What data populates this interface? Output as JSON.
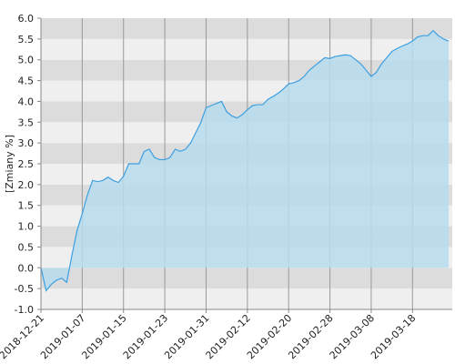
{
  "chart_data": {
    "type": "area",
    "y_label": "[Zmiany %]",
    "categories": [
      "2018-12-21",
      null,
      null,
      null,
      null,
      null,
      null,
      null,
      "2019-01-07",
      null,
      null,
      null,
      null,
      null,
      null,
      null,
      "2019-01-15",
      null,
      null,
      null,
      null,
      null,
      null,
      null,
      "2019-01-23",
      null,
      null,
      null,
      null,
      null,
      null,
      null,
      "2019-01-31",
      null,
      null,
      null,
      null,
      null,
      null,
      null,
      "2019-02-12",
      null,
      null,
      null,
      null,
      null,
      null,
      null,
      "2019-02-20",
      null,
      null,
      null,
      null,
      null,
      null,
      null,
      "2019-02-28",
      null,
      null,
      null,
      null,
      null,
      null,
      null,
      "2019-03-08",
      null,
      null,
      null,
      null,
      null,
      null,
      null,
      "2019-03-18",
      null,
      null,
      null,
      null,
      null,
      null,
      null
    ],
    "values": [
      0.0,
      -0.55,
      -0.4,
      -0.3,
      -0.25,
      -0.35,
      0.3,
      0.9,
      1.3,
      1.75,
      2.1,
      2.07,
      2.1,
      2.18,
      2.1,
      2.05,
      2.2,
      2.5,
      2.5,
      2.5,
      2.8,
      2.85,
      2.65,
      2.6,
      2.6,
      2.65,
      2.85,
      2.8,
      2.85,
      3.0,
      3.25,
      3.5,
      3.85,
      3.9,
      3.95,
      4.0,
      3.75,
      3.65,
      3.6,
      3.68,
      3.8,
      3.9,
      3.92,
      3.92,
      4.05,
      4.12,
      4.2,
      4.3,
      4.42,
      4.45,
      4.5,
      4.6,
      4.75,
      4.85,
      4.95,
      5.05,
      5.03,
      5.08,
      5.1,
      5.12,
      5.1,
      5.0,
      4.9,
      4.75,
      4.6,
      4.7,
      4.9,
      5.05,
      5.2,
      5.27,
      5.33,
      5.38,
      5.45,
      5.55,
      5.58,
      5.58,
      5.7,
      5.58,
      5.5,
      5.45
    ],
    "color": "#3d9fe0",
    "fill_color": "#b6dced",
    "ylim": [
      -1.0,
      6.0
    ],
    "yticks": [
      {
        "value": -1,
        "label": "-1.0"
      },
      {
        "value": -0.5,
        "label": "-0.5"
      },
      {
        "value": 0,
        "label": "0.0"
      },
      {
        "value": 0.5,
        "label": "0.5"
      },
      {
        "value": 1,
        "label": "1.0"
      },
      {
        "value": 1.5,
        "label": "1.5"
      },
      {
        "value": 2,
        "label": "2.0"
      },
      {
        "value": 2.5,
        "label": "2.5"
      },
      {
        "value": 3,
        "label": "3.0"
      },
      {
        "value": 3.5,
        "label": "3.5"
      },
      {
        "value": 4,
        "label": "4.0"
      },
      {
        "value": 4.5,
        "label": "4.5"
      },
      {
        "value": 5,
        "label": "5.0"
      },
      {
        "value": 5.5,
        "label": "5.5"
      },
      {
        "value": 6,
        "label": "6.0"
      }
    ],
    "grid": true
  }
}
